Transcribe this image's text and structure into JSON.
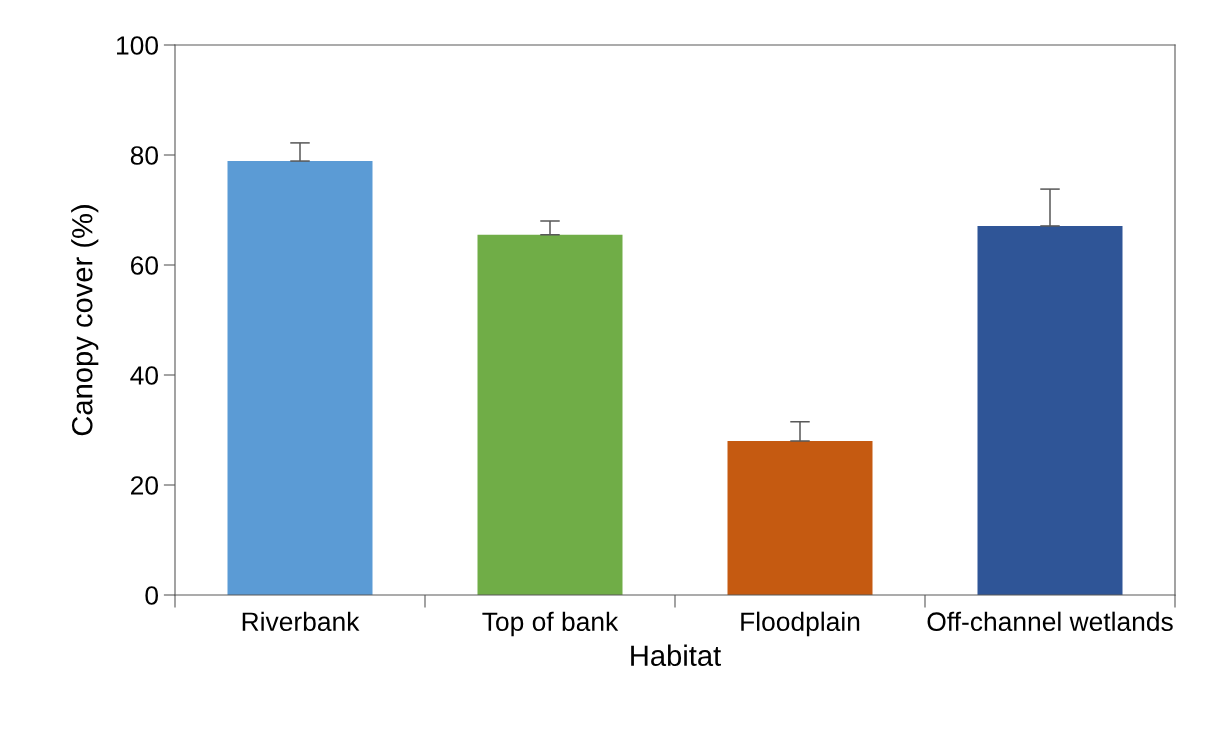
{
  "chart_data": {
    "type": "bar",
    "xlabel": "Habitat",
    "ylabel": "Canopy cover (%)",
    "categories": [
      "Riverbank",
      "Top of bank",
      "Floodplain",
      "Off-channel wetlands"
    ],
    "values": [
      78.9,
      65.5,
      28.0,
      67.1
    ],
    "colors": [
      "#5b9bd5",
      "#70ad47",
      "#c55a11",
      "#2f5597"
    ],
    "errors": [
      [
        78.9,
        82.2
      ],
      [
        65.5,
        68.0
      ],
      [
        28.0,
        31.5
      ],
      [
        67.1,
        73.8
      ]
    ],
    "ylim": [
      0,
      100
    ],
    "yticks": [
      0,
      20,
      40,
      60,
      80,
      100
    ],
    "grid": false,
    "legend": false
  }
}
